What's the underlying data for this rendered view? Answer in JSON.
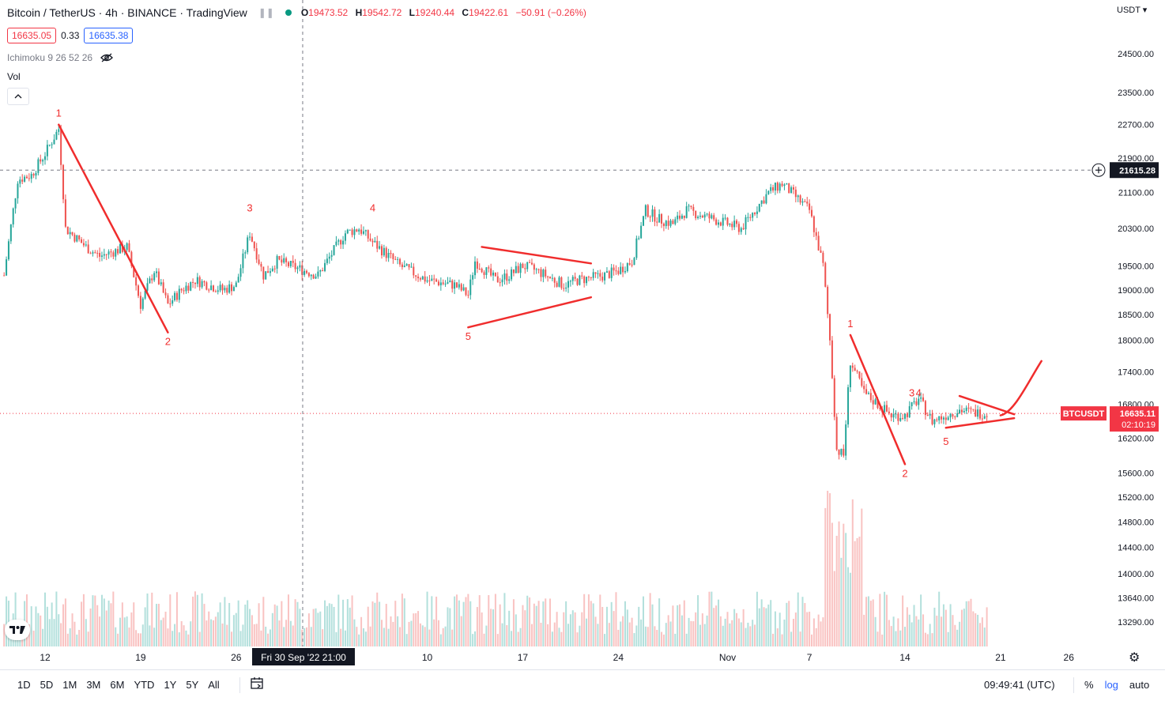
{
  "header": {
    "title": "Bitcoin / TetherUS · 4h · BINANCE · TradingView",
    "ohlc": {
      "open_label": "O",
      "open": "19473.52",
      "high_label": "H",
      "high": "19542.72",
      "low_label": "L",
      "low": "19240.44",
      "close_label": "C",
      "close": "19422.61",
      "change": "−50.91 (−0.26%)"
    },
    "bid": "16635.05",
    "spread": "0.33",
    "ask": "16635.38",
    "indicator": "Ichimoku 9 26 52 26",
    "volume_label": "Vol",
    "currency": "USDT ▾",
    "collapse_icon": "chevron-up-icon"
  },
  "crosshair": {
    "date_label": "Fri 30 Sep '22   21:00",
    "price_label": "21615.28"
  },
  "last_price": {
    "symbol": "BTCUSDT",
    "price": "16635.11",
    "countdown": "02:10:19"
  },
  "colors": {
    "up": "#26a69a",
    "down": "#ef5350",
    "drawing": "#f02d2d",
    "crosshair_label_bg": "#131722",
    "last_price_bg": "#f23645"
  },
  "chart_data": {
    "type": "candlestick",
    "title": "Bitcoin / TetherUS · 4h · BINANCE · TradingView",
    "y_axis": {
      "scale": "log",
      "ticks": [
        13290,
        13640,
        14000,
        14400,
        14800,
        15200,
        15600,
        16200,
        16800,
        17400,
        18000,
        18500,
        19000,
        19500,
        20300,
        21100,
        21900,
        22700,
        23500,
        24500
      ],
      "tick_labels": [
        "13290.00",
        "13640.00",
        "14000.00",
        "14400.00",
        "14800.00",
        "15200.00",
        "15600.00",
        "16200.00",
        "16800.00",
        "17400.00",
        "18000.00",
        "18500.00",
        "19000.00",
        "19500.00",
        "20300.00",
        "21100.00",
        "21900.00",
        "22700.00",
        "23500.00",
        "24500.00"
      ]
    },
    "x_axis": {
      "tick_labels": [
        "12",
        "19",
        "26",
        "10",
        "17",
        "24",
        "Nov",
        "7",
        "14",
        "21",
        "26"
      ],
      "tick_dates": [
        "2022-09-12",
        "2022-09-19",
        "2022-09-26",
        "2022-10-10",
        "2022-10-17",
        "2022-10-24",
        "2022-11-01",
        "2022-11-07",
        "2022-11-14",
        "2022-11-21",
        "2022-11-26"
      ]
    },
    "price_path": [
      [
        "2022-09-09",
        19300
      ],
      [
        "2022-09-10",
        21400
      ],
      [
        "2022-09-11",
        21500
      ],
      [
        "2022-09-12",
        22000
      ],
      [
        "2022-09-13",
        22600
      ],
      [
        "2022-09-13T12",
        20300
      ],
      [
        "2022-09-15",
        19900
      ],
      [
        "2022-09-16",
        19700
      ],
      [
        "2022-09-18",
        19900
      ],
      [
        "2022-09-19",
        18700
      ],
      [
        "2022-09-20",
        19400
      ],
      [
        "2022-09-21",
        18700
      ],
      [
        "2022-09-22",
        19000
      ],
      [
        "2022-09-23",
        19200
      ],
      [
        "2022-09-25",
        19000
      ],
      [
        "2022-09-26",
        19100
      ],
      [
        "2022-09-27",
        20200
      ],
      [
        "2022-09-28",
        19300
      ],
      [
        "2022-09-29",
        19600
      ],
      [
        "2022-09-30",
        19500
      ],
      [
        "2022-10-02",
        19300
      ],
      [
        "2022-10-04",
        20200
      ],
      [
        "2022-10-05",
        20300
      ],
      [
        "2022-10-06",
        20000
      ],
      [
        "2022-10-08",
        19500
      ],
      [
        "2022-10-10",
        19200
      ],
      [
        "2022-10-12",
        19100
      ],
      [
        "2022-10-13",
        18900
      ],
      [
        "2022-10-13T12",
        19600
      ],
      [
        "2022-10-15",
        19200
      ],
      [
        "2022-10-16",
        19300
      ],
      [
        "2022-10-17",
        19500
      ],
      [
        "2022-10-18",
        19400
      ],
      [
        "2022-10-20",
        19100
      ],
      [
        "2022-10-21",
        19200
      ],
      [
        "2022-10-23",
        19300
      ],
      [
        "2022-10-24",
        19400
      ],
      [
        "2022-10-25",
        19600
      ],
      [
        "2022-10-26",
        20700
      ],
      [
        "2022-10-27",
        20500
      ],
      [
        "2022-10-28",
        20400
      ],
      [
        "2022-10-29",
        20700
      ],
      [
        "2022-10-31",
        20500
      ],
      [
        "2022-11-01",
        20400
      ],
      [
        "2022-11-02",
        20300
      ],
      [
        "2022-11-04",
        21100
      ],
      [
        "2022-11-05",
        21300
      ],
      [
        "2022-11-06",
        21000
      ],
      [
        "2022-11-07",
        20700
      ],
      [
        "2022-11-08",
        19500
      ],
      [
        "2022-11-08T12",
        18000
      ],
      [
        "2022-11-09",
        16000
      ],
      [
        "2022-11-09T12",
        15900
      ],
      [
        "2022-11-10",
        17600
      ],
      [
        "2022-11-11",
        17000
      ],
      [
        "2022-11-12",
        16800
      ],
      [
        "2022-11-13",
        16600
      ],
      [
        "2022-11-14",
        16600
      ],
      [
        "2022-11-15",
        16900
      ],
      [
        "2022-11-16",
        16500
      ],
      [
        "2022-11-17",
        16600
      ],
      [
        "2022-11-18",
        16700
      ],
      [
        "2022-11-19",
        16650
      ],
      [
        "2022-11-20",
        16635
      ]
    ],
    "last_price": 16635.11,
    "crosshair_price": 21615.28,
    "annotations": [
      {
        "label": "1",
        "date": "2022-09-13",
        "price": 22700
      },
      {
        "label": "2",
        "date": "2022-09-21",
        "price": 18150
      },
      {
        "label": "3",
        "date": "2022-09-27",
        "price": 20500
      },
      {
        "label": "4",
        "date": "2022-10-06",
        "price": 20500
      },
      {
        "label": "5",
        "date": "2022-10-13",
        "price": 18250
      },
      {
        "label": "1",
        "date": "2022-11-10",
        "price": 18100
      },
      {
        "label": "2",
        "date": "2022-11-14",
        "price": 15750
      },
      {
        "label": "3",
        "date": "2022-11-14T12",
        "price": 16800
      },
      {
        "label": "4",
        "date": "2022-11-15",
        "price": 16800
      },
      {
        "label": "5",
        "date": "2022-11-17",
        "price": 16300
      }
    ],
    "drawings": [
      {
        "type": "line",
        "from": [
          "2022-09-13",
          22700
        ],
        "to": [
          "2022-09-21",
          18150
        ]
      },
      {
        "type": "line",
        "from": [
          "2022-10-14",
          19900
        ],
        "to": [
          "2022-10-22",
          19550
        ]
      },
      {
        "type": "line",
        "from": [
          "2022-10-13",
          18250
        ],
        "to": [
          "2022-10-22",
          18850
        ]
      },
      {
        "type": "line",
        "from": [
          "2022-11-10",
          18100
        ],
        "to": [
          "2022-11-14",
          15750
        ]
      },
      {
        "type": "line",
        "from": [
          "2022-11-18",
          16950
        ],
        "to": [
          "2022-11-22",
          16620
        ]
      },
      {
        "type": "line",
        "from": [
          "2022-11-17",
          16380
        ],
        "to": [
          "2022-11-22",
          16550
        ]
      },
      {
        "type": "curve",
        "points": [
          [
            "2022-11-21",
            16600
          ],
          [
            "2022-11-22",
            16650
          ],
          [
            "2022-11-23",
            17200
          ],
          [
            "2022-11-24",
            17600
          ]
        ]
      }
    ]
  },
  "bottom_bar": {
    "ranges": [
      "1D",
      "5D",
      "1M",
      "3M",
      "6M",
      "YTD",
      "1Y",
      "5Y",
      "All"
    ],
    "calendar_icon": "calendar-icon",
    "clock": "09:49:41 (UTC)",
    "percent": "%",
    "log": "log",
    "auto": "auto"
  }
}
